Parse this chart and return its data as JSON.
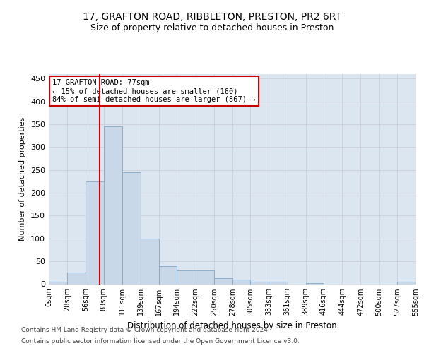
{
  "title": "17, GRAFTON ROAD, RIBBLETON, PRESTON, PR2 6RT",
  "subtitle": "Size of property relative to detached houses in Preston",
  "xlabel": "Distribution of detached houses by size in Preston",
  "ylabel": "Number of detached properties",
  "bar_color": "#c8d8e8",
  "bar_edge_color": "#7fa8c8",
  "grid_color": "#c8c8d8",
  "bg_color": "#dce6f0",
  "vline_value": 77,
  "vline_color": "#cc0000",
  "annotation_line1": "17 GRAFTON ROAD: 77sqm",
  "annotation_line2": "← 15% of detached houses are smaller (160)",
  "annotation_line3": "84% of semi-detached houses are larger (867) →",
  "annotation_box_color": "#cc0000",
  "footer1": "Contains HM Land Registry data © Crown copyright and database right 2024.",
  "footer2": "Contains public sector information licensed under the Open Government Licence v3.0.",
  "bin_edges": [
    0,
    28,
    56,
    83,
    111,
    139,
    167,
    194,
    222,
    250,
    278,
    305,
    333,
    361,
    389,
    416,
    444,
    472,
    500,
    527,
    555
  ],
  "bin_labels": [
    "0sqm",
    "28sqm",
    "56sqm",
    "83sqm",
    "111sqm",
    "139sqm",
    "167sqm",
    "194sqm",
    "222sqm",
    "250sqm",
    "278sqm",
    "305sqm",
    "333sqm",
    "361sqm",
    "389sqm",
    "416sqm",
    "444sqm",
    "472sqm",
    "500sqm",
    "527sqm",
    "555sqm"
  ],
  "bar_heights": [
    5,
    25,
    225,
    345,
    245,
    100,
    40,
    30,
    30,
    13,
    10,
    5,
    5,
    0,
    3,
    0,
    0,
    0,
    0,
    5
  ],
  "ylim": [
    0,
    460
  ],
  "yticks": [
    0,
    50,
    100,
    150,
    200,
    250,
    300,
    350,
    400,
    450
  ]
}
